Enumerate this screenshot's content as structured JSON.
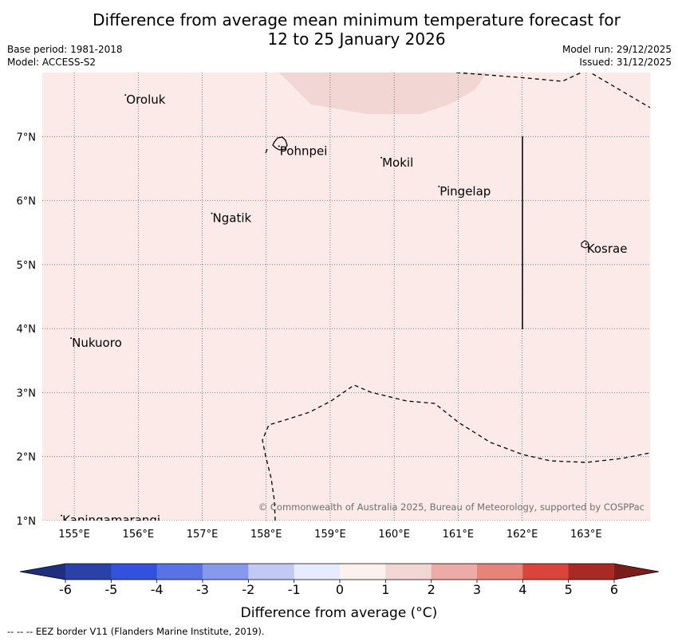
{
  "title": {
    "line1": "Difference from average mean minimum temperature forecast for",
    "line2": "12 to 25 January 2026"
  },
  "meta": {
    "base_period": "Base period: 1981-2018",
    "model": "Model: ACCESS-S2",
    "model_run": "Model run: 29/12/2025",
    "issued": "Issued: 31/12/2025"
  },
  "map": {
    "lon_range": [
      154.5,
      164
    ],
    "lat_range": [
      1,
      8
    ],
    "lon_ticks": [
      "155°E",
      "156°E",
      "157°E",
      "158°E",
      "159°E",
      "160°E",
      "161°E",
      "162°E",
      "163°E"
    ],
    "lat_ticks": [
      "1°N",
      "2°N",
      "3°N",
      "4°N",
      "5°N",
      "6°N",
      "7°N"
    ],
    "background_anomaly_class": "0 to 1",
    "background_color": "#fbeae8",
    "warm_patch_anomaly_class": "1 to 2",
    "warm_patch_color": "#f2d6d3",
    "places": [
      {
        "name": "Oroluk",
        "lon": 155.8,
        "lat": 7.65
      },
      {
        "name": "Pohnpei",
        "lon": 158.2,
        "lat": 6.85
      },
      {
        "name": "Mokil",
        "lon": 159.8,
        "lat": 6.67
      },
      {
        "name": "Pingelap",
        "lon": 160.7,
        "lat": 6.22
      },
      {
        "name": "Ngatik",
        "lon": 157.15,
        "lat": 5.8
      },
      {
        "name": "Kosrae",
        "lon": 163.0,
        "lat": 5.32
      },
      {
        "name": "Nukuoro",
        "lon": 154.95,
        "lat": 3.85
      },
      {
        "name": "Kapingamarangi",
        "lon": 154.8,
        "lat": 1.08
      }
    ],
    "copyright": "© Commonwealth of Australia 2025, Bureau of Meteorology, supported by COSPPac"
  },
  "colorbar": {
    "ticks": [
      "-6",
      "-5",
      "-4",
      "-3",
      "-2",
      "-1",
      "0",
      "1",
      "2",
      "3",
      "4",
      "5",
      "6"
    ],
    "colors": [
      "#2a41a8",
      "#3352dc",
      "#5a73e3",
      "#8799ec",
      "#c2c9f5",
      "#e8eafd",
      "#fdf1ef",
      "#f2d6d3",
      "#ecaba7",
      "#e6847c",
      "#d9443b",
      "#a82a24"
    ],
    "under_color": "#1f2f7e",
    "over_color": "#7b1d1a",
    "label": "Difference from average (°C)"
  },
  "footer": {
    "legend_text": "--  --  -- EEZ border V11 (Flanders Marine Institute, 2019)."
  }
}
